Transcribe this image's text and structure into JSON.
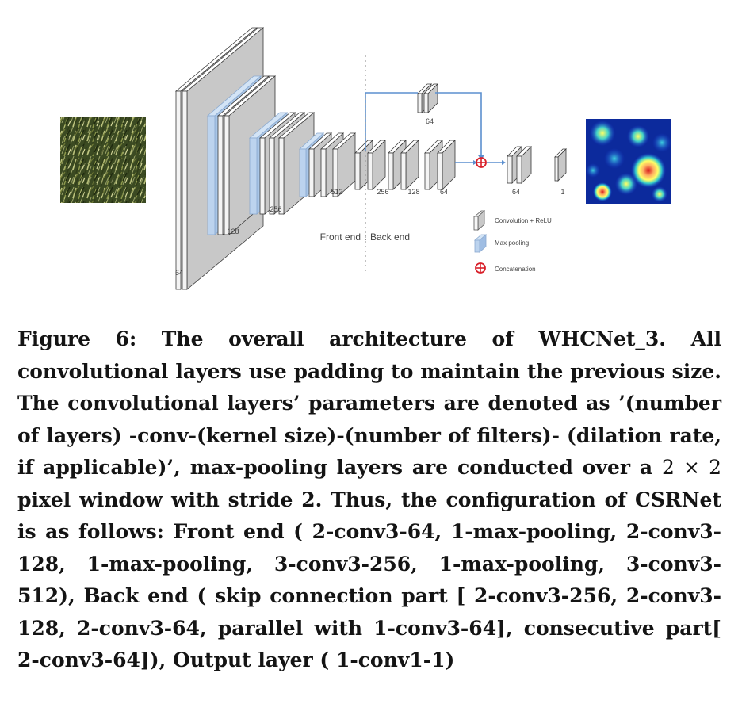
{
  "figure": {
    "size_labels": {
      "front": [
        "64",
        "128",
        "256"
      ],
      "back": [
        "512",
        "256",
        "128",
        "64"
      ],
      "parallel": "64",
      "output": [
        "64",
        "1"
      ]
    },
    "split_label": {
      "front": "Front end",
      "divider": ":",
      "back": "Back end"
    },
    "legend": {
      "conv": "Convolution + ReLU",
      "pool": "Max pooling",
      "concat": "Concatenation"
    },
    "colors": {
      "layer_face": "#f4f4f4",
      "layer_side": "#c8c8c8",
      "pool": "#a9c6e8",
      "arrow": "#5b8fcf",
      "concat": "#d8202a"
    }
  },
  "caption": {
    "label": "Figure 6:",
    "text_before_math": "The overall architecture of WHCNet_3. All convolutional layers use padding to maintain the previous size. The convolutional layers’ parameters are denoted as ’(number of layers) -conv-(kernel size)-(number of filters)- (dilation rate, if applicable)’, max-pooling layers are conducted over a ",
    "math": "2 × 2",
    "text_after_math": " pixel window with stride 2. Thus, the configuration of CSRNet is as follows: Front end ( 2-conv3-64, 1-max-pooling, 2-conv3-128, 1-max-pooling, 3-conv3-256, 1-max-pooling, 3-conv3-512), Back end ( skip connection part [ 2-conv3-256, 2-conv3-128, 2-conv3-64, parallel with 1-conv3-64], consecutive part[ 2-conv3-64]), Output layer ( 1-conv1-1)"
  }
}
